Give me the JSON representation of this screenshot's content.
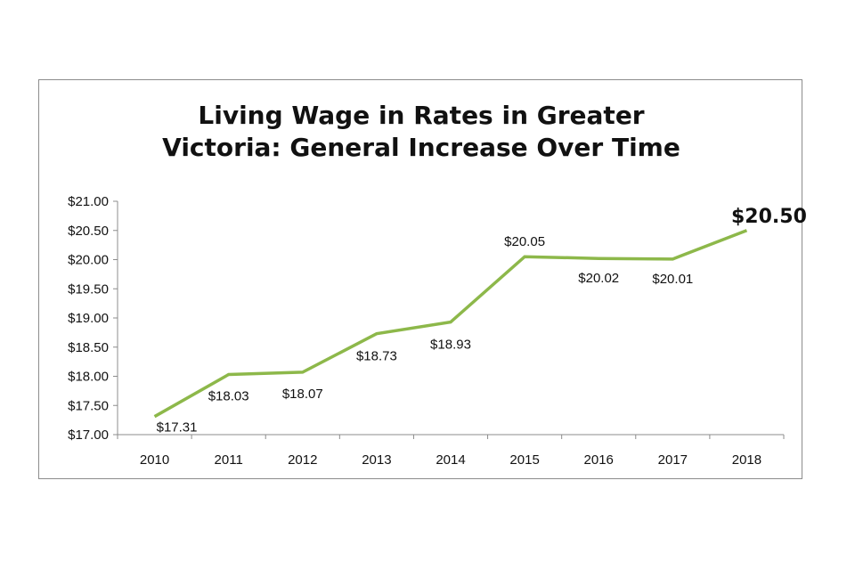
{
  "colors": {
    "line": "#8db84a",
    "axis": "#8c8c8c",
    "text": "#111111"
  },
  "chart_data": {
    "type": "line",
    "title": "Living Wage in Rates in Greater Victoria: General Increase Over Time",
    "title_lines": [
      "Living Wage in Rates in Greater",
      "Victoria: General Increase Over Time"
    ],
    "xlabel": "",
    "ylabel": "",
    "categories": [
      "2010",
      "2011",
      "2012",
      "2013",
      "2014",
      "2015",
      "2016",
      "2017",
      "2018"
    ],
    "series": [
      {
        "values": [
          17.31,
          18.03,
          18.07,
          18.73,
          18.93,
          20.05,
          20.02,
          20.01,
          20.5
        ],
        "data_labels": [
          "$17.31",
          "$18.03",
          "$18.07",
          "$18.73",
          "$18.93",
          "$20.05",
          "$20.02",
          "$20.01",
          "$20.50"
        ]
      }
    ],
    "ylim": [
      17.0,
      21.0
    ],
    "ytick_labels": [
      "$17.00",
      "$17.50",
      "$18.00",
      "$18.50",
      "$19.00",
      "$19.50",
      "$20.00",
      "$20.50",
      "$21.00"
    ],
    "ytick_values": [
      17.0,
      17.5,
      18.0,
      18.5,
      19.0,
      19.5,
      20.0,
      20.5,
      21.0
    ],
    "grid": false,
    "legend": "none",
    "emphasized_label": "2018"
  }
}
